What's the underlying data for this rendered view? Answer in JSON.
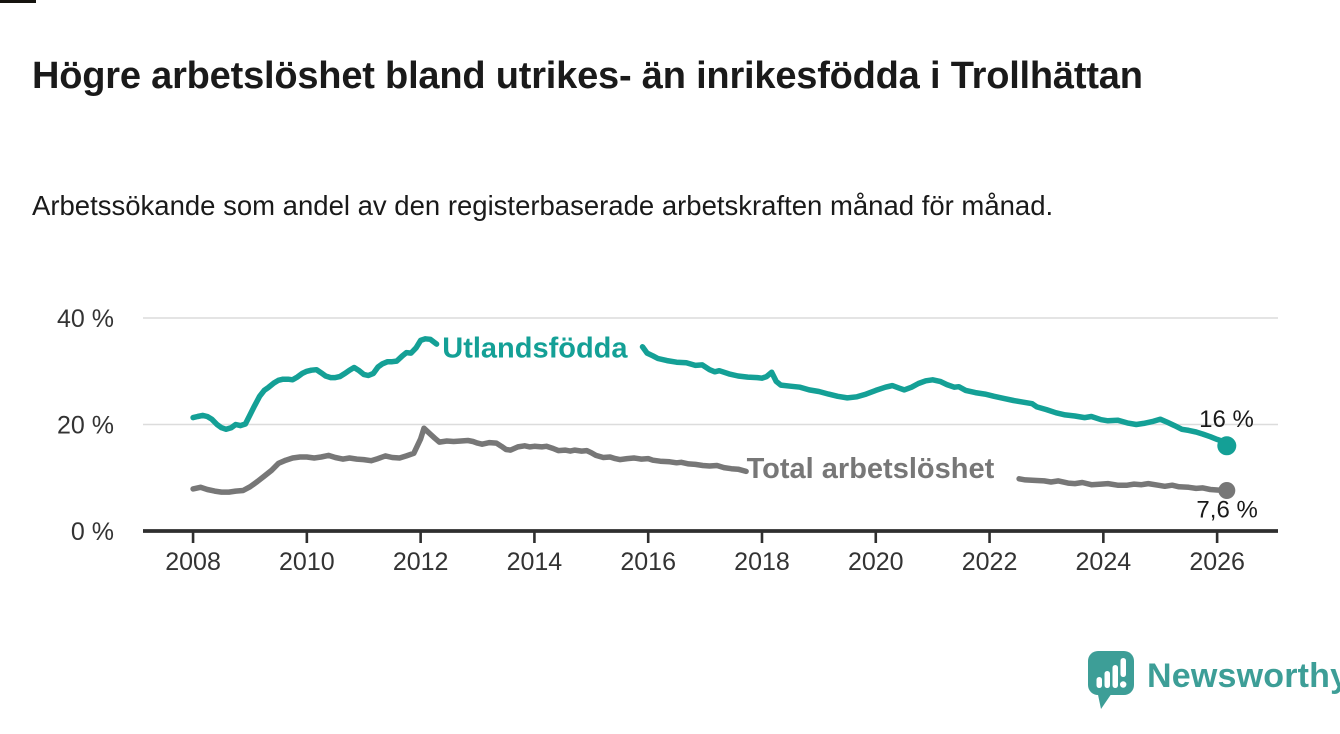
{
  "page": {
    "title": "Högre arbetslöshet bland utrikes- än inrikesfödda i Trollhättan",
    "subtitle": "Arbetssökande som andel av den registerbaserade arbetskraften månad för månad."
  },
  "branding": {
    "logo_text": "Newsworthy",
    "logo_color": "#3d9e97",
    "logo_icon": "speech-bubble-bar-chart-icon"
  },
  "colors": {
    "accent_teal": "#14a096",
    "series_gray": "#777777",
    "text": "#1a1a1a",
    "grid": "#dcdcdc",
    "axis": "#2f2f2f"
  },
  "chart_data": {
    "type": "line",
    "title": "Högre arbetslöshet bland utrikes- än inrikesfödda i Trollhättan",
    "subtitle": "Arbetssökande som andel av den registerbaserade arbetskraften månad för månad.",
    "unit": "%",
    "xlim": [
      2007.12,
      2027.07
    ],
    "ylim": [
      0,
      40
    ],
    "grid": "horizontal-only",
    "legend_position": "inline",
    "x_ticks": [
      {
        "value": 2008,
        "label": "2008"
      },
      {
        "value": 2010,
        "label": "2010"
      },
      {
        "value": 2012,
        "label": "2012"
      },
      {
        "value": 2014,
        "label": "2014"
      },
      {
        "value": 2016,
        "label": "2016"
      },
      {
        "value": 2018,
        "label": "2018"
      },
      {
        "value": 2020,
        "label": "2020"
      },
      {
        "value": 2022,
        "label": "2022"
      },
      {
        "value": 2024,
        "label": "2024"
      },
      {
        "value": 2026,
        "label": "2026"
      }
    ],
    "y_ticks": [
      {
        "value": 0,
        "label": "0 %"
      },
      {
        "value": 20,
        "label": "20 %"
      },
      {
        "value": 40,
        "label": "40 %"
      }
    ],
    "series": [
      {
        "name": "Utlandsfödda",
        "color": "#14a096",
        "stroke_width": 5.5,
        "inline_label": {
          "text": "Utlandsfödda",
          "x": 2012.38,
          "y": 34.5
        },
        "end_value_label": "16 %",
        "end_point": [
          2026.17,
          16.0
        ],
        "end_dot_radius": 9.5,
        "segments": [
          [
            [
              2008.0,
              21.3
            ],
            [
              2008.08,
              21.5
            ],
            [
              2008.17,
              21.7
            ],
            [
              2008.25,
              21.5
            ],
            [
              2008.33,
              21.0
            ],
            [
              2008.42,
              20.0
            ],
            [
              2008.5,
              19.4
            ],
            [
              2008.58,
              19.1
            ],
            [
              2008.67,
              19.4
            ],
            [
              2008.75,
              20.0
            ],
            [
              2008.83,
              19.8
            ],
            [
              2008.92,
              20.1
            ],
            [
              2009.0,
              21.8
            ],
            [
              2009.08,
              23.5
            ],
            [
              2009.17,
              25.3
            ],
            [
              2009.25,
              26.4
            ],
            [
              2009.33,
              27.0
            ],
            [
              2009.42,
              27.8
            ],
            [
              2009.5,
              28.3
            ],
            [
              2009.58,
              28.5
            ],
            [
              2009.67,
              28.5
            ],
            [
              2009.75,
              28.4
            ],
            [
              2009.83,
              28.9
            ],
            [
              2009.92,
              29.6
            ],
            [
              2010.0,
              30.0
            ],
            [
              2010.08,
              30.2
            ],
            [
              2010.17,
              30.3
            ],
            [
              2010.25,
              29.7
            ],
            [
              2010.33,
              29.1
            ],
            [
              2010.42,
              28.8
            ],
            [
              2010.5,
              28.8
            ],
            [
              2010.58,
              29.0
            ],
            [
              2010.67,
              29.6
            ],
            [
              2010.75,
              30.2
            ],
            [
              2010.83,
              30.7
            ],
            [
              2010.92,
              30.1
            ],
            [
              2011.0,
              29.4
            ],
            [
              2011.08,
              29.2
            ],
            [
              2011.17,
              29.6
            ],
            [
              2011.25,
              30.8
            ],
            [
              2011.33,
              31.4
            ],
            [
              2011.42,
              31.8
            ],
            [
              2011.5,
              31.8
            ],
            [
              2011.58,
              31.9
            ],
            [
              2011.67,
              32.8
            ],
            [
              2011.75,
              33.5
            ],
            [
              2011.83,
              33.4
            ],
            [
              2011.92,
              34.4
            ],
            [
              2012.0,
              35.8
            ],
            [
              2012.08,
              36.1
            ],
            [
              2012.17,
              36.0
            ],
            [
              2012.28,
              35.1
            ]
          ],
          [
            [
              2015.9,
              34.6
            ],
            [
              2015.98,
              33.4
            ],
            [
              2016.08,
              32.9
            ],
            [
              2016.17,
              32.4
            ],
            [
              2016.33,
              32.0
            ],
            [
              2016.5,
              31.7
            ],
            [
              2016.67,
              31.6
            ],
            [
              2016.83,
              31.1
            ],
            [
              2016.95,
              31.2
            ],
            [
              2017.08,
              30.3
            ],
            [
              2017.17,
              29.9
            ],
            [
              2017.25,
              30.1
            ],
            [
              2017.42,
              29.5
            ],
            [
              2017.58,
              29.1
            ],
            [
              2017.75,
              28.9
            ],
            [
              2017.92,
              28.8
            ],
            [
              2018.0,
              28.7
            ],
            [
              2018.08,
              29.0
            ],
            [
              2018.17,
              29.8
            ],
            [
              2018.25,
              28.1
            ],
            [
              2018.33,
              27.4
            ],
            [
              2018.5,
              27.2
            ],
            [
              2018.67,
              27.0
            ],
            [
              2018.83,
              26.5
            ],
            [
              2019.0,
              26.2
            ],
            [
              2019.17,
              25.7
            ],
            [
              2019.33,
              25.3
            ],
            [
              2019.5,
              25.0
            ],
            [
              2019.67,
              25.2
            ],
            [
              2019.83,
              25.7
            ],
            [
              2020.0,
              26.4
            ],
            [
              2020.17,
              27.0
            ],
            [
              2020.29,
              27.3
            ],
            [
              2020.42,
              26.8
            ],
            [
              2020.5,
              26.5
            ],
            [
              2020.63,
              27.0
            ],
            [
              2020.75,
              27.7
            ],
            [
              2020.88,
              28.2
            ],
            [
              2021.0,
              28.4
            ],
            [
              2021.13,
              28.1
            ],
            [
              2021.25,
              27.5
            ],
            [
              2021.38,
              27.0
            ],
            [
              2021.46,
              27.1
            ],
            [
              2021.58,
              26.4
            ],
            [
              2021.75,
              26.0
            ],
            [
              2021.92,
              25.7
            ],
            [
              2022.08,
              25.3
            ],
            [
              2022.25,
              24.9
            ],
            [
              2022.42,
              24.5
            ],
            [
              2022.58,
              24.2
            ],
            [
              2022.75,
              23.9
            ],
            [
              2022.83,
              23.3
            ],
            [
              2023.0,
              22.8
            ],
            [
              2023.17,
              22.2
            ],
            [
              2023.33,
              21.8
            ],
            [
              2023.5,
              21.6
            ],
            [
              2023.67,
              21.3
            ],
            [
              2023.79,
              21.5
            ],
            [
              2023.96,
              20.9
            ],
            [
              2024.08,
              20.7
            ],
            [
              2024.25,
              20.8
            ],
            [
              2024.42,
              20.3
            ],
            [
              2024.58,
              20.0
            ],
            [
              2024.71,
              20.2
            ],
            [
              2024.88,
              20.6
            ],
            [
              2025.0,
              21.0
            ],
            [
              2025.13,
              20.4
            ],
            [
              2025.25,
              19.8
            ],
            [
              2025.38,
              19.1
            ],
            [
              2025.5,
              18.9
            ],
            [
              2025.63,
              18.6
            ],
            [
              2025.75,
              18.2
            ],
            [
              2025.88,
              17.7
            ],
            [
              2026.0,
              17.2
            ],
            [
              2026.08,
              16.9
            ],
            [
              2026.17,
              16.0
            ]
          ]
        ]
      },
      {
        "name": "Total arbetslöshet",
        "color": "#777777",
        "stroke_width": 5.5,
        "inline_label": {
          "text": "Total arbetslöshet",
          "x": 2017.73,
          "y": 11.8
        },
        "end_value_label": "7,6 %",
        "end_point": [
          2026.17,
          7.6
        ],
        "end_dot_radius": 8.5,
        "segments": [
          [
            [
              2008.0,
              7.9
            ],
            [
              2008.13,
              8.2
            ],
            [
              2008.25,
              7.8
            ],
            [
              2008.38,
              7.5
            ],
            [
              2008.5,
              7.3
            ],
            [
              2008.63,
              7.3
            ],
            [
              2008.75,
              7.5
            ],
            [
              2008.88,
              7.6
            ],
            [
              2009.0,
              8.3
            ],
            [
              2009.13,
              9.3
            ],
            [
              2009.25,
              10.3
            ],
            [
              2009.38,
              11.4
            ],
            [
              2009.5,
              12.7
            ],
            [
              2009.63,
              13.3
            ],
            [
              2009.75,
              13.7
            ],
            [
              2009.88,
              13.9
            ],
            [
              2010.0,
              13.9
            ],
            [
              2010.13,
              13.7
            ],
            [
              2010.25,
              13.9
            ],
            [
              2010.38,
              14.2
            ],
            [
              2010.5,
              13.8
            ],
            [
              2010.63,
              13.5
            ],
            [
              2010.75,
              13.7
            ],
            [
              2010.88,
              13.5
            ],
            [
              2011.0,
              13.4
            ],
            [
              2011.13,
              13.2
            ],
            [
              2011.25,
              13.6
            ],
            [
              2011.38,
              14.1
            ],
            [
              2011.5,
              13.8
            ],
            [
              2011.63,
              13.7
            ],
            [
              2011.75,
              14.1
            ],
            [
              2011.88,
              14.6
            ],
            [
              2012.0,
              17.3
            ],
            [
              2012.06,
              19.3
            ],
            [
              2012.17,
              18.2
            ],
            [
              2012.25,
              17.4
            ],
            [
              2012.33,
              16.7
            ],
            [
              2012.46,
              16.9
            ],
            [
              2012.58,
              16.8
            ],
            [
              2012.71,
              16.9
            ],
            [
              2012.83,
              17.0
            ],
            [
              2012.92,
              16.8
            ],
            [
              2013.0,
              16.5
            ],
            [
              2013.08,
              16.3
            ],
            [
              2013.21,
              16.6
            ],
            [
              2013.33,
              16.5
            ],
            [
              2013.42,
              15.9
            ],
            [
              2013.5,
              15.3
            ],
            [
              2013.58,
              15.2
            ],
            [
              2013.71,
              15.8
            ],
            [
              2013.83,
              16.0
            ],
            [
              2013.92,
              15.8
            ],
            [
              2014.0,
              15.9
            ],
            [
              2014.13,
              15.8
            ],
            [
              2014.21,
              15.9
            ],
            [
              2014.33,
              15.5
            ],
            [
              2014.42,
              15.1
            ],
            [
              2014.54,
              15.2
            ],
            [
              2014.63,
              15.0
            ],
            [
              2014.71,
              15.2
            ],
            [
              2014.83,
              15.0
            ],
            [
              2014.92,
              15.1
            ],
            [
              2015.0,
              14.7
            ],
            [
              2015.08,
              14.2
            ],
            [
              2015.21,
              13.8
            ],
            [
              2015.33,
              13.9
            ],
            [
              2015.42,
              13.6
            ],
            [
              2015.5,
              13.4
            ],
            [
              2015.63,
              13.6
            ],
            [
              2015.75,
              13.7
            ],
            [
              2015.88,
              13.5
            ],
            [
              2016.0,
              13.6
            ],
            [
              2016.08,
              13.3
            ],
            [
              2016.21,
              13.1
            ],
            [
              2016.38,
              13.0
            ],
            [
              2016.5,
              12.8
            ],
            [
              2016.58,
              12.9
            ],
            [
              2016.71,
              12.6
            ],
            [
              2016.83,
              12.5
            ],
            [
              2016.96,
              12.3
            ],
            [
              2017.08,
              12.2
            ],
            [
              2017.21,
              12.3
            ],
            [
              2017.33,
              11.9
            ],
            [
              2017.46,
              11.7
            ],
            [
              2017.58,
              11.6
            ],
            [
              2017.72,
              11.2
            ]
          ],
          [
            [
              2022.52,
              9.8
            ],
            [
              2022.63,
              9.6
            ],
            [
              2022.79,
              9.5
            ],
            [
              2022.96,
              9.4
            ],
            [
              2023.08,
              9.2
            ],
            [
              2023.21,
              9.4
            ],
            [
              2023.38,
              9.0
            ],
            [
              2023.5,
              8.9
            ],
            [
              2023.63,
              9.1
            ],
            [
              2023.79,
              8.7
            ],
            [
              2023.96,
              8.8
            ],
            [
              2024.08,
              8.9
            ],
            [
              2024.25,
              8.6
            ],
            [
              2024.42,
              8.6
            ],
            [
              2024.54,
              8.8
            ],
            [
              2024.67,
              8.7
            ],
            [
              2024.79,
              8.9
            ],
            [
              2024.96,
              8.6
            ],
            [
              2025.08,
              8.4
            ],
            [
              2025.21,
              8.6
            ],
            [
              2025.33,
              8.3
            ],
            [
              2025.5,
              8.2
            ],
            [
              2025.63,
              8.0
            ],
            [
              2025.75,
              8.1
            ],
            [
              2025.88,
              7.8
            ],
            [
              2026.0,
              7.7
            ],
            [
              2026.17,
              7.6
            ]
          ]
        ]
      }
    ]
  }
}
